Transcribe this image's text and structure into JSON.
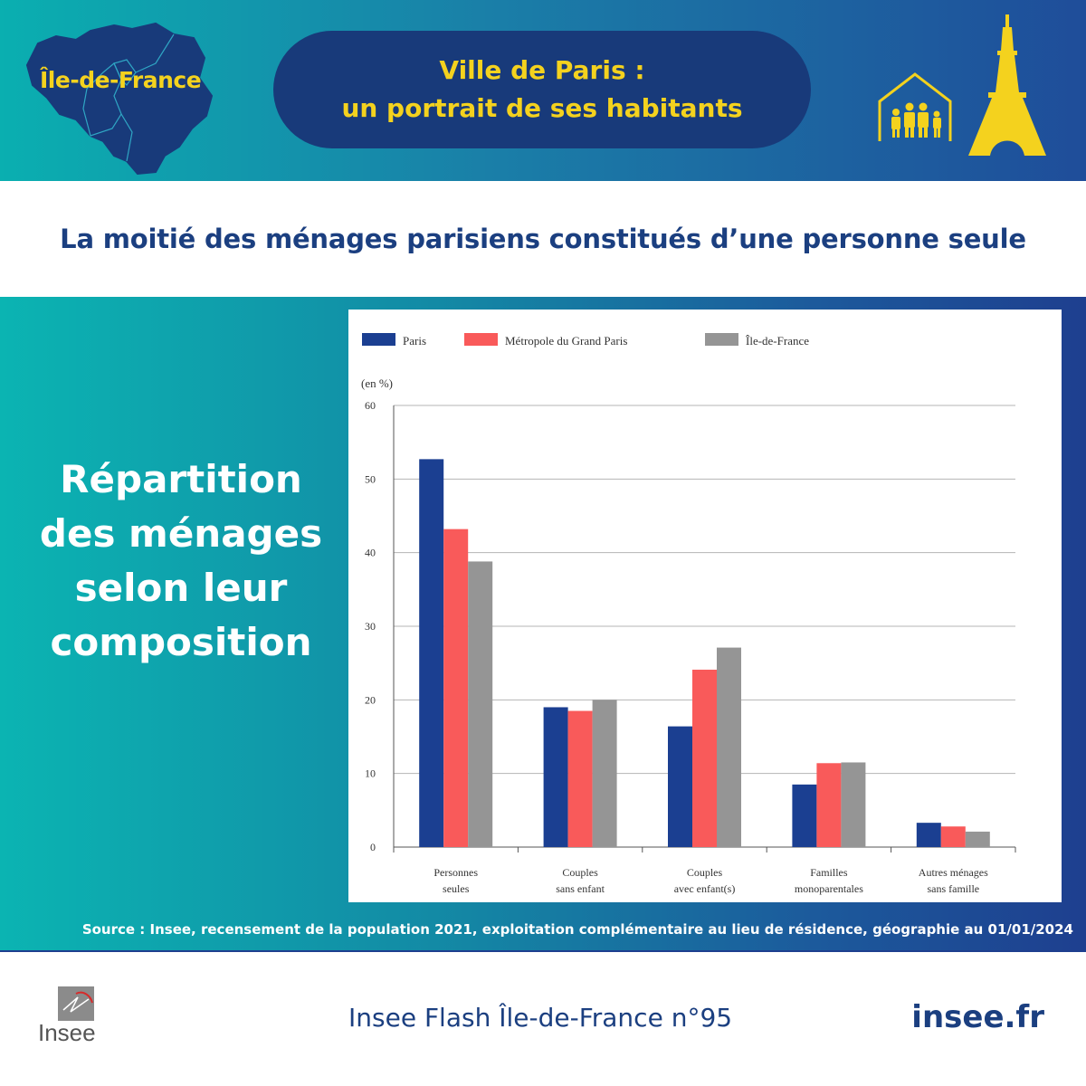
{
  "header": {
    "region_label": "Île-de-France",
    "title_line1": "Ville de Paris :",
    "title_line2": "un portrait de ses habitants"
  },
  "subtitle": "La moitié des ménages parisiens constitués d’une personne seule",
  "side_title": [
    "Répartition",
    "des ménages",
    "selon leur",
    "composition"
  ],
  "source": "Source : Insee, recensement de la population 2021, exploitation complémentaire au lieu de résidence, géographie au 01/01/2024",
  "footer": {
    "logo_text": "Insee",
    "publication": "Insee Flash Île-de-France n°95",
    "site": "insee.fr"
  },
  "colors": {
    "accent_yellow": "#f4d21e",
    "navy": "#183a7a",
    "title_blue": "#1b3f80"
  },
  "icons": [
    "ile-de-france-map-icon",
    "family-house-icon",
    "eiffel-tower-icon"
  ],
  "chart_data": {
    "type": "bar",
    "ylabel": "(en %)",
    "ylim": [
      0,
      60
    ],
    "yticks": [
      0,
      10,
      20,
      30,
      40,
      50,
      60
    ],
    "grid": true,
    "legend_position": "top",
    "categories": [
      [
        "Personnes",
        "seules"
      ],
      [
        "Couples",
        "sans enfant"
      ],
      [
        "Couples",
        "avec enfant(s)"
      ],
      [
        "Familles",
        "monoparentales"
      ],
      [
        "Autres ménages",
        "sans famille"
      ]
    ],
    "series": [
      {
        "name": "Paris",
        "color": "#1b3f91",
        "values": [
          52.7,
          19.0,
          16.4,
          8.5,
          3.3
        ]
      },
      {
        "name": "Métropole du Grand Paris",
        "color": "#f95a5a",
        "values": [
          43.2,
          18.5,
          24.1,
          11.4,
          2.8
        ]
      },
      {
        "name": "Île-de-France",
        "color": "#959595",
        "values": [
          38.8,
          20.0,
          27.1,
          11.5,
          2.1
        ]
      }
    ]
  }
}
